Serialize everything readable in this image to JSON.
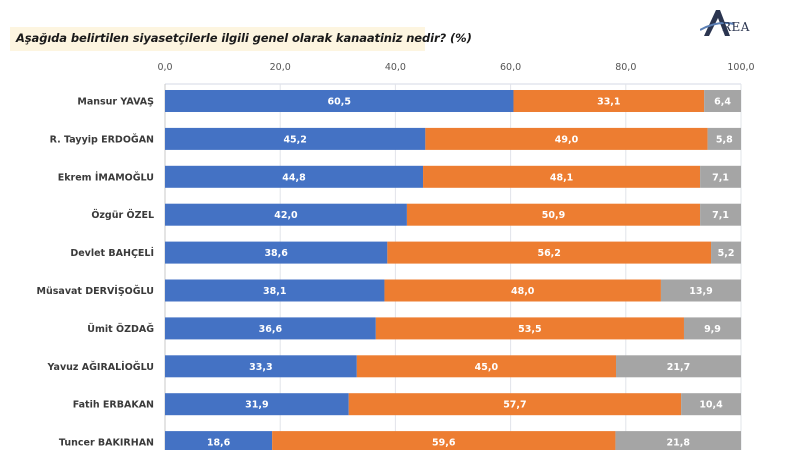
{
  "header": {
    "question": "Aşağıda belirtilen siyasetçilerle ilgili genel olarak kanaatiniz nedir? (%)",
    "logo_text": "REA",
    "logo_icon": "area-logo-a-icon"
  },
  "chart_data": {
    "type": "bar",
    "orientation": "horizontal",
    "stacked": true,
    "title": "Aşağıda belirtilen siyasetçilerle ilgili genel olarak kanaatiniz nedir? (%)",
    "xlabel": "",
    "ylabel": "",
    "xlim": [
      0,
      100
    ],
    "x_ticks": [
      "0,0",
      "20,0",
      "40,0",
      "60,0",
      "80,0",
      "100,0"
    ],
    "x_tick_values": [
      0,
      20,
      40,
      60,
      80,
      100
    ],
    "x_axis_position": "top",
    "grid": true,
    "legend": "none",
    "categories": [
      "Mansur YAVAŞ",
      "R. Tayyip ERDOĞAN",
      "Ekrem İMAMOĞLU",
      "Özgür ÖZEL",
      "Devlet BAHÇELİ",
      "Müsavat DERVİŞOĞLU",
      "Ümit ÖZDAĞ",
      "Yavuz AĞIRALİOĞLU",
      "Fatih ERBAKAN",
      "Tuncer BAKIRHAN"
    ],
    "series": [
      {
        "name": "series-1",
        "color": "#4472c4",
        "values": [
          60.5,
          45.2,
          44.8,
          42.0,
          38.6,
          38.1,
          36.6,
          33.3,
          31.9,
          18.6
        ],
        "labels": [
          "60,5",
          "45,2",
          "44,8",
          "42,0",
          "38,6",
          "38,1",
          "36,6",
          "33,3",
          "31,9",
          "18,6"
        ]
      },
      {
        "name": "series-2",
        "color": "#ed7d31",
        "values": [
          33.1,
          49.0,
          48.1,
          50.9,
          56.2,
          48.0,
          53.5,
          45.0,
          57.7,
          59.6
        ],
        "labels": [
          "33,1",
          "49,0",
          "48,1",
          "50,9",
          "56,2",
          "48,0",
          "53,5",
          "45,0",
          "57,7",
          "59,6"
        ]
      },
      {
        "name": "series-3",
        "color": "#a5a5a5",
        "values": [
          6.4,
          5.8,
          7.1,
          7.1,
          5.2,
          13.9,
          9.9,
          21.7,
          10.4,
          21.8
        ],
        "labels": [
          "6,4",
          "5,8",
          "7,1",
          "7,1",
          "5,2",
          "13,9",
          "9,9",
          "21,7",
          "10,4",
          "21,8"
        ]
      }
    ]
  }
}
